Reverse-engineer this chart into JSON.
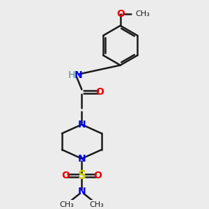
{
  "bg_color": "#ececec",
  "atom_colors": {
    "C": "#000000",
    "N": "#0000ee",
    "O": "#ee0000",
    "S": "#cccc00",
    "H": "#4a9090"
  },
  "bond_color": "#1a1a1a",
  "figsize": [
    3.0,
    3.0
  ],
  "dpi": 100,
  "xlim": [
    0,
    10
  ],
  "ylim": [
    0,
    10
  ]
}
